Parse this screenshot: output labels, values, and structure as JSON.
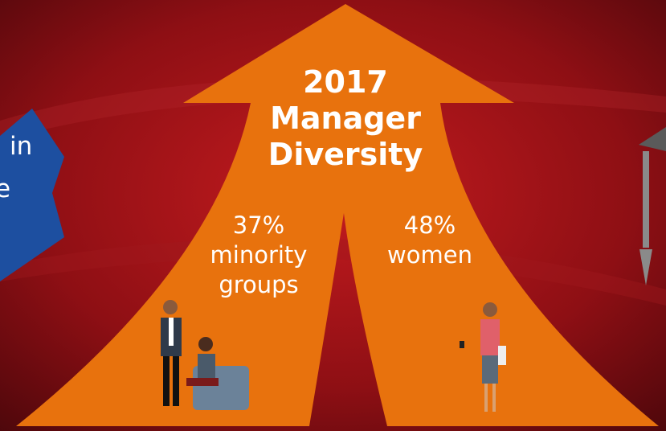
{
  "left_panel": {
    "lines": [
      "in",
      "e"
    ]
  },
  "arrow": {
    "title": [
      "2017",
      "Manager",
      "Diversity"
    ],
    "left_stat": {
      "value": "37%",
      "label": [
        "minority",
        "groups"
      ]
    },
    "right_stat": {
      "value": "48%",
      "label": [
        "women"
      ]
    }
  }
}
